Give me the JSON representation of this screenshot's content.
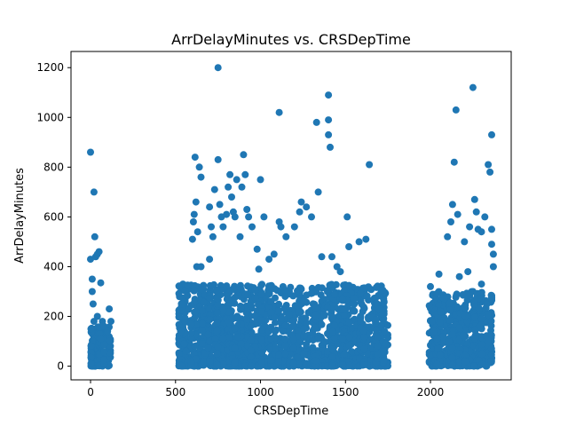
{
  "chart_data": {
    "type": "scatter",
    "title": "ArrDelayMinutes vs. CRSDepTime",
    "xlabel": "CRSDepTime",
    "ylabel": "ArrDelayMinutes",
    "xlim": [
      -115,
      2475
    ],
    "ylim": [
      -55,
      1265
    ],
    "xticks": [
      0,
      500,
      1000,
      1500,
      2000
    ],
    "yticks": [
      0,
      200,
      400,
      600,
      800,
      1000,
      1200
    ],
    "grid": false,
    "legend": "none",
    "color": "#1f77b4",
    "points": [
      [
        0,
        860
      ],
      [
        0,
        430
      ],
      [
        10,
        350
      ],
      [
        10,
        300
      ],
      [
        15,
        250
      ],
      [
        20,
        700
      ],
      [
        25,
        520
      ],
      [
        30,
        440
      ],
      [
        40,
        450
      ],
      [
        50,
        460
      ],
      [
        60,
        335
      ],
      [
        70,
        180
      ],
      [
        80,
        160
      ],
      [
        100,
        140
      ],
      [
        110,
        230
      ],
      [
        120,
        180
      ],
      [
        115,
        100
      ],
      [
        60,
        110
      ],
      [
        40,
        200
      ],
      [
        20,
        180
      ],
      [
        530,
        140
      ],
      [
        540,
        100
      ],
      [
        550,
        90
      ],
      [
        560,
        60
      ],
      [
        600,
        510
      ],
      [
        605,
        580
      ],
      [
        610,
        610
      ],
      [
        615,
        840
      ],
      [
        620,
        660
      ],
      [
        625,
        400
      ],
      [
        630,
        540
      ],
      [
        640,
        800
      ],
      [
        650,
        760
      ],
      [
        650,
        400
      ],
      [
        700,
        430
      ],
      [
        700,
        640
      ],
      [
        710,
        560
      ],
      [
        720,
        520
      ],
      [
        730,
        710
      ],
      [
        750,
        1200
      ],
      [
        750,
        830
      ],
      [
        760,
        650
      ],
      [
        770,
        600
      ],
      [
        780,
        560
      ],
      [
        800,
        610
      ],
      [
        810,
        720
      ],
      [
        820,
        770
      ],
      [
        830,
        680
      ],
      [
        840,
        620
      ],
      [
        850,
        600
      ],
      [
        860,
        750
      ],
      [
        880,
        520
      ],
      [
        890,
        720
      ],
      [
        900,
        850
      ],
      [
        910,
        770
      ],
      [
        920,
        630
      ],
      [
        930,
        600
      ],
      [
        950,
        560
      ],
      [
        980,
        470
      ],
      [
        990,
        390
      ],
      [
        1000,
        750
      ],
      [
        1020,
        600
      ],
      [
        1050,
        430
      ],
      [
        1080,
        450
      ],
      [
        1110,
        1020
      ],
      [
        1110,
        580
      ],
      [
        1120,
        560
      ],
      [
        1150,
        520
      ],
      [
        1200,
        560
      ],
      [
        1230,
        620
      ],
      [
        1240,
        660
      ],
      [
        1270,
        640
      ],
      [
        1300,
        600
      ],
      [
        1330,
        980
      ],
      [
        1340,
        700
      ],
      [
        1360,
        440
      ],
      [
        1400,
        1090
      ],
      [
        1400,
        990
      ],
      [
        1400,
        930
      ],
      [
        1410,
        880
      ],
      [
        1420,
        440
      ],
      [
        1450,
        400
      ],
      [
        1470,
        380
      ],
      [
        1510,
        600
      ],
      [
        1520,
        480
      ],
      [
        1580,
        500
      ],
      [
        1620,
        510
      ],
      [
        1640,
        810
      ],
      [
        1700,
        230
      ],
      [
        1720,
        210
      ],
      [
        1730,
        140
      ],
      [
        1740,
        90
      ],
      [
        2000,
        320
      ],
      [
        2010,
        180
      ],
      [
        2020,
        140
      ],
      [
        2050,
        370
      ],
      [
        2060,
        220
      ],
      [
        2100,
        520
      ],
      [
        2120,
        580
      ],
      [
        2130,
        650
      ],
      [
        2140,
        820
      ],
      [
        2150,
        1030
      ],
      [
        2160,
        610
      ],
      [
        2170,
        360
      ],
      [
        2200,
        500
      ],
      [
        2220,
        380
      ],
      [
        2230,
        560
      ],
      [
        2250,
        1120
      ],
      [
        2260,
        670
      ],
      [
        2270,
        620
      ],
      [
        2280,
        550
      ],
      [
        2300,
        540
      ],
      [
        2320,
        600
      ],
      [
        2340,
        810
      ],
      [
        2350,
        780
      ],
      [
        2360,
        930
      ],
      [
        2360,
        550
      ],
      [
        2360,
        490
      ],
      [
        2370,
        450
      ],
      [
        2370,
        400
      ],
      [
        2300,
        330
      ],
      [
        2250,
        300
      ]
    ],
    "dense_clusters": [
      {
        "x": [
          0,
          120
        ],
        "ymax": 160
      },
      {
        "x": [
          520,
          1750
        ],
        "ymax": 330
      },
      {
        "x": [
          1990,
          2365
        ],
        "ymax": 300
      }
    ]
  }
}
